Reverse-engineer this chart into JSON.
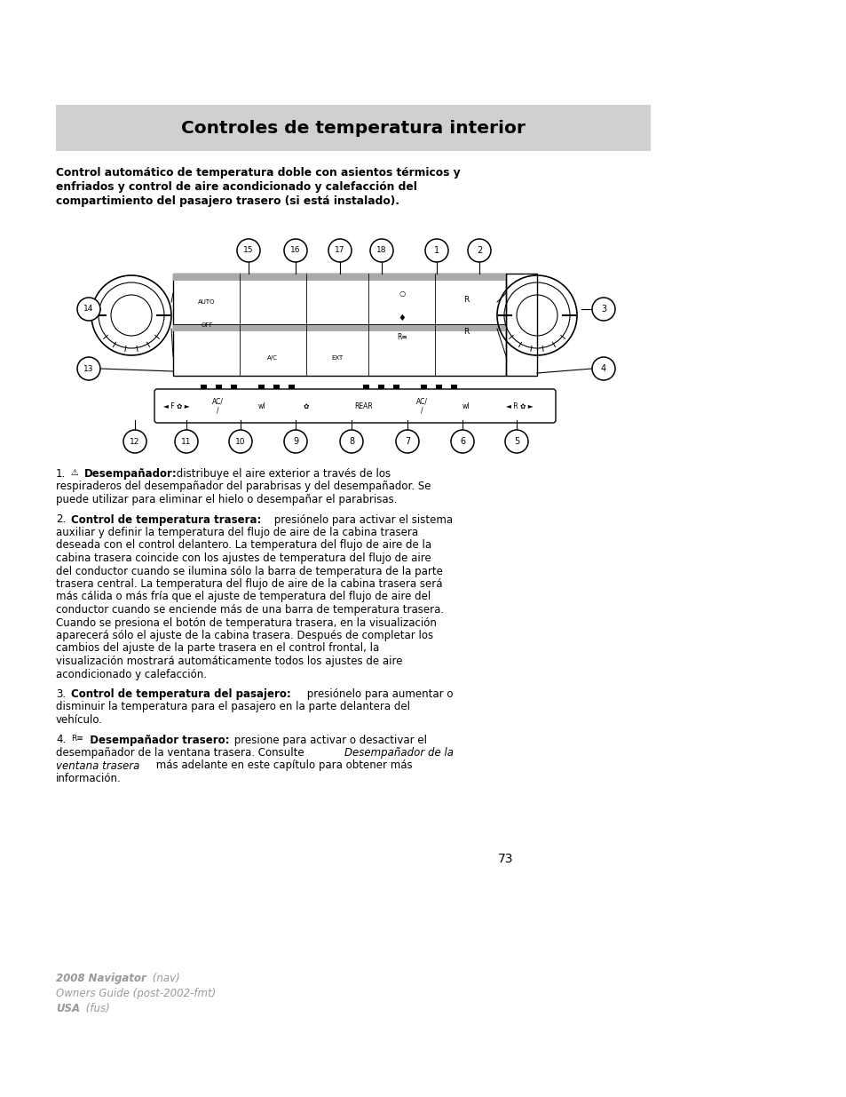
{
  "title": "Controles de temperatura interior",
  "header_bg": "#d0d0d0",
  "page_bg": "#ffffff",
  "intro_bold": "Control automático de temperatura doble con asientos térmicos y enfriados y control de aire acondicionado y calefacción del compartimiento del pasajero trasero (si está instalado).",
  "item1_num": "1.",
  "item1_bold": "Desempañador:",
  "item1_text": " distribuye el aire exterior a través de los respiraderos del desempañador del parabrisas y del desempañador. Se puede utilizar para eliminar el hielo o desempañar el parabrisas.",
  "item2_num": "2.",
  "item2_bold": "Control de temperatura trasera:",
  "item2_text": " presiónelo para activar el sistema auxiliar y definir la temperatura del flujo de aire de la cabina trasera deseada con el control delantero. La temperatura del flujo de aire de la cabina trasera coincide con los ajustes de temperatura del flujo de aire del conductor cuando se ilumina sólo la barra de temperatura de la parte trasera central. La temperatura del flujo de aire de la cabina trasera será más cálida o más fría que el ajuste de temperatura del flujo de aire del conductor cuando se enciende más de una barra de temperatura trasera. Cuando se presiona el botón de temperatura trasera, en la visualización aparecerá sólo el ajuste de la cabina trasera. Después de completar los cambios del ajuste de la parte trasera en el control frontal, la visualización mostrará automáticamente todos los ajustes de aire acondicionado y calefacción.",
  "item3_num": "3.",
  "item3_bold": "Control de temperatura del pasajero:",
  "item3_text": " presiónelo para aumentar o disminuir la temperatura para el pasajero en la parte delantera del vehículo.",
  "item4_num": "4.",
  "item4_bold": "Desempañador trasero:",
  "item4_text_normal": " presione para activar o desactivar el desempañador de la ventana trasera. Consulte ",
  "item4_text_italic": "Desempañador de la ventana trasera",
  "item4_text_normal2": " más adelante en este capítulo para obtener más información.",
  "page_number": "73",
  "footer_line1_bold": "2008 Navigator",
  "footer_line1_normal": " (nav)",
  "footer_line2": "Owners Guide (post-2002-fmt)",
  "footer_line3_bold": "USA",
  "footer_line3_normal": " (fus)"
}
